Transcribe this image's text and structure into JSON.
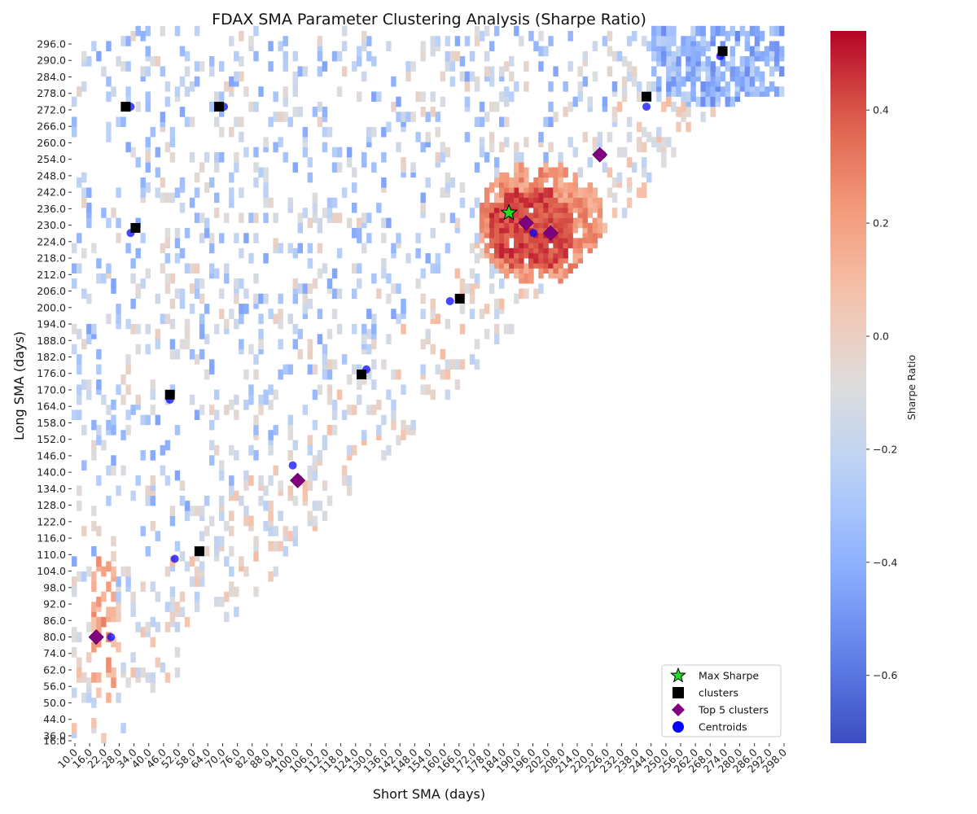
{
  "chart_data": {
    "type": "heatmap",
    "title": "FDAX SMA Parameter Clustering Analysis (Sharpe Ratio)",
    "xlabel": "Short SMA (days)",
    "ylabel": "Long SMA (days)",
    "x_tick_labels": [
      "10.0",
      "16.0",
      "22.0",
      "28.0",
      "34.0",
      "40.0",
      "46.0",
      "52.0",
      "58.0",
      "64.0",
      "70.0",
      "76.0",
      "82.0",
      "88.0",
      "94.0",
      "100.0",
      "106.0",
      "112.0",
      "118.0",
      "124.0",
      "130.0",
      "136.0",
      "142.0",
      "148.0",
      "154.0",
      "160.0",
      "166.0",
      "172.0",
      "178.0",
      "184.0",
      "190.0",
      "196.0",
      "202.0",
      "208.0",
      "214.0",
      "220.0",
      "226.0",
      "232.0",
      "238.0",
      "244.0",
      "250.0",
      "256.0",
      "262.0",
      "268.0",
      "274.0",
      "280.0",
      "286.0",
      "292.0",
      "298.0"
    ],
    "y_tick_labels": [
      "16.0",
      "36.0",
      "44.0",
      "50.0",
      "56.0",
      "62.0",
      "74.0",
      "80.0",
      "86.0",
      "92.0",
      "98.0",
      "104.0",
      "110.0",
      "116.0",
      "122.0",
      "128.0",
      "134.0",
      "140.0",
      "146.0",
      "152.0",
      "158.0",
      "164.0",
      "170.0",
      "176.0",
      "182.0",
      "188.0",
      "194.0",
      "200.0",
      "206.0",
      "212.0",
      "218.0",
      "224.0",
      "230.0",
      "236.0",
      "242.0",
      "248.0",
      "254.0",
      "260.0",
      "266.0",
      "272.0",
      "278.0",
      "284.0",
      "290.0",
      "296.0"
    ],
    "colorbar": {
      "label": "Sharpe Ratio",
      "colormap": "coolwarm",
      "vmin": -0.72,
      "vmax": 0.54,
      "ticks": [
        0.4,
        0.2,
        0.0,
        -0.2,
        -0.4,
        -0.6
      ],
      "tick_labels": [
        "0.4",
        "0.2",
        "0.0",
        "−0.2",
        "−0.4",
        "−0.6"
      ]
    },
    "regions": [
      {
        "name": "hot-core",
        "cx": 196,
        "cy": 218,
        "rx": 18,
        "ry": 16,
        "value": 0.42
      },
      {
        "name": "hot-mid",
        "cx": 200,
        "cy": 220,
        "rx": 26,
        "ry": 24,
        "value": 0.26
      },
      {
        "name": "upper-right-cold",
        "cx": 270,
        "cy": 282,
        "rx": 22,
        "ry": 16,
        "value": -0.45
      },
      {
        "name": "lower-left-warm",
        "cx": 22,
        "cy": 60,
        "rx": 6,
        "ry": 30,
        "value": 0.22
      }
    ],
    "max_sharpe": {
      "label": "Max Sharpe",
      "x": 188,
      "y": 226,
      "color": "#22dd22"
    },
    "clusters": {
      "label": "clusters",
      "color": "#000000",
      "points": [
        {
          "x": 32,
          "y": 268
        },
        {
          "x": 70,
          "y": 268
        },
        {
          "x": 36,
          "y": 220
        },
        {
          "x": 50,
          "y": 154
        },
        {
          "x": 62,
          "y": 92
        },
        {
          "x": 128,
          "y": 162
        },
        {
          "x": 168,
          "y": 192
        },
        {
          "x": 244,
          "y": 272
        },
        {
          "x": 275,
          "y": 290
        }
      ]
    },
    "top_clusters": {
      "label": "Top 5 clusters",
      "color": "#800080",
      "points": [
        {
          "x": 20,
          "y": 58
        },
        {
          "x": 102,
          "y": 120
        },
        {
          "x": 195,
          "y": 222
        },
        {
          "x": 205,
          "y": 218
        },
        {
          "x": 225,
          "y": 249
        }
      ]
    },
    "centroids": {
      "label": "Centroids",
      "color": "#0000ff",
      "points": [
        {
          "x": 34,
          "y": 268
        },
        {
          "x": 72,
          "y": 268
        },
        {
          "x": 34,
          "y": 218
        },
        {
          "x": 50,
          "y": 152
        },
        {
          "x": 52,
          "y": 89
        },
        {
          "x": 130,
          "y": 164
        },
        {
          "x": 164,
          "y": 191
        },
        {
          "x": 244,
          "y": 268
        },
        {
          "x": 274,
          "y": 288
        },
        {
          "x": 26,
          "y": 58
        },
        {
          "x": 100,
          "y": 126
        },
        {
          "x": 198,
          "y": 218
        },
        {
          "x": 226,
          "y": 249
        }
      ]
    },
    "legend": {
      "position": "lower-right",
      "entries": [
        "Max Sharpe",
        "clusters",
        "Top 5 clusters",
        "Centroids"
      ]
    },
    "grid": false
  }
}
